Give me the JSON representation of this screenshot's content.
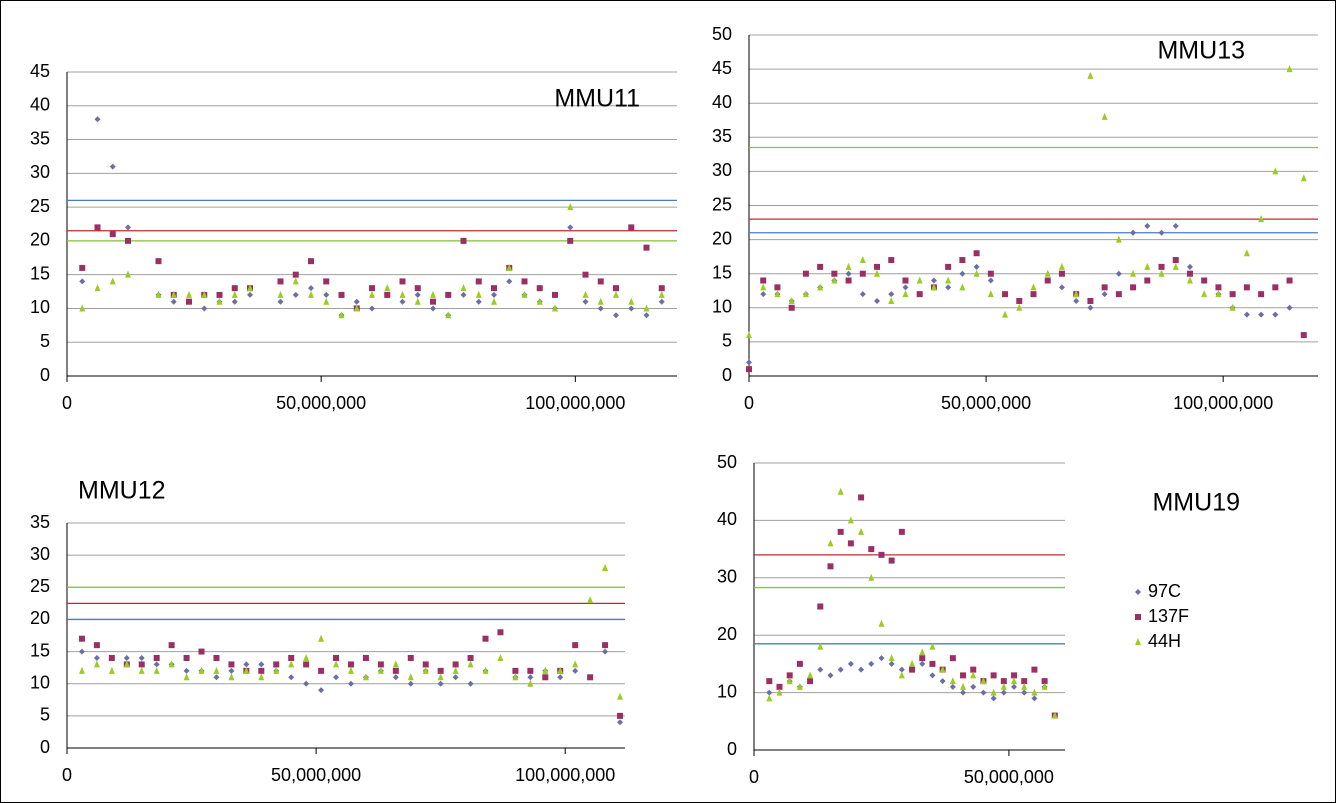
{
  "chart_data": [
    {
      "type": "scatter",
      "title": "MMU11",
      "x": [
        3000000,
        6000000,
        9000000,
        12000000,
        15000000,
        18000000,
        21000000,
        24000000,
        27000000,
        30000000,
        33000000,
        36000000,
        39000000,
        42000000,
        45000000,
        48000000,
        51000000,
        54000000,
        57000000,
        60000000,
        63000000,
        66000000,
        69000000,
        72000000,
        75000000,
        78000000,
        81000000,
        84000000,
        87000000,
        90000000,
        93000000,
        96000000,
        99000000,
        102000000,
        105000000,
        108000000,
        111000000,
        114000000,
        117000000
      ],
      "series": [
        {
          "color": "#6b6fa6",
          "marker": "diamond",
          "threshold": 26,
          "threshold_color": "#4a7cc7",
          "values": [
            14,
            38,
            31,
            22,
            null,
            12,
            11,
            11,
            10,
            11,
            11,
            12,
            null,
            11,
            12,
            13,
            12,
            9,
            11,
            10,
            12,
            11,
            12,
            10,
            9,
            12,
            11,
            12,
            14,
            12,
            11,
            10,
            22,
            11,
            10,
            9,
            10,
            9,
            11
          ]
        },
        {
          "color": "#9b2f64",
          "marker": "square",
          "threshold": 21.5,
          "threshold_color": "#c0282e",
          "values": [
            16,
            22,
            21,
            20,
            null,
            17,
            12,
            11,
            12,
            12,
            13,
            13,
            null,
            14,
            15,
            17,
            14,
            12,
            10,
            13,
            12,
            14,
            13,
            11,
            12,
            20,
            14,
            13,
            16,
            14,
            13,
            12,
            20,
            15,
            14,
            13,
            22,
            19,
            13
          ]
        },
        {
          "color": "#9acd1f",
          "marker": "triangle",
          "threshold": 20,
          "threshold_color": "#8cc33a",
          "values": [
            10,
            13,
            14,
            15,
            null,
            12,
            12,
            12,
            12,
            11,
            12,
            13,
            null,
            12,
            14,
            12,
            11,
            9,
            10,
            12,
            13,
            12,
            11,
            12,
            9,
            13,
            12,
            11,
            16,
            12,
            11,
            10,
            25,
            12,
            11,
            12,
            11,
            10,
            12
          ]
        }
      ],
      "xlim": [
        0,
        120000000
      ],
      "xticks": [
        0,
        {
          "value": 50000000,
          "label": "50,000,000"
        },
        {
          "value": 100000000,
          "label": "100,000,000"
        }
      ],
      "ylim": [
        0,
        45
      ],
      "yticks": [
        0,
        5,
        10,
        15,
        20,
        25,
        30,
        35,
        40,
        45
      ],
      "grid": true
    },
    {
      "type": "scatter",
      "title": "MMU13",
      "x": [
        0,
        3000000,
        6000000,
        9000000,
        12000000,
        15000000,
        18000000,
        21000000,
        24000000,
        27000000,
        30000000,
        33000000,
        36000000,
        39000000,
        42000000,
        45000000,
        48000000,
        51000000,
        54000000,
        57000000,
        60000000,
        63000000,
        66000000,
        69000000,
        72000000,
        75000000,
        78000000,
        81000000,
        84000000,
        87000000,
        90000000,
        93000000,
        96000000,
        99000000,
        102000000,
        105000000,
        108000000,
        111000000,
        114000000,
        117000000
      ],
      "series": [
        {
          "color": "#6b6fa6",
          "marker": "diamond",
          "threshold": 21,
          "threshold_color": "#4a7cc7",
          "values": [
            2,
            12,
            12,
            11,
            12,
            13,
            14,
            15,
            12,
            11,
            12,
            13,
            12,
            14,
            13,
            15,
            16,
            14,
            12,
            11,
            12,
            14,
            13,
            11,
            10,
            12,
            15,
            21,
            22,
            21,
            22,
            16,
            14,
            12,
            10,
            9,
            9,
            9,
            10,
            6
          ]
        },
        {
          "color": "#9b2f64",
          "marker": "square",
          "threshold": 23,
          "threshold_color": "#c0282e",
          "values": [
            1,
            14,
            13,
            10,
            15,
            16,
            15,
            14,
            15,
            16,
            17,
            14,
            12,
            13,
            16,
            17,
            18,
            15,
            12,
            11,
            12,
            14,
            15,
            12,
            11,
            13,
            12,
            13,
            14,
            16,
            17,
            15,
            14,
            13,
            12,
            13,
            12,
            13,
            14,
            6
          ]
        },
        {
          "color": "#9acd1f",
          "marker": "triangle",
          "threshold": 33.5,
          "threshold_color": "#8cc33a",
          "values": [
            6,
            13,
            12,
            11,
            12,
            13,
            14,
            16,
            17,
            15,
            11,
            12,
            14,
            13,
            14,
            13,
            15,
            12,
            9,
            10,
            13,
            15,
            16,
            12,
            44,
            38,
            20,
            15,
            16,
            15,
            16,
            14,
            12,
            12,
            10,
            18,
            23,
            30,
            45,
            29
          ]
        }
      ],
      "xlim": [
        0,
        120000000
      ],
      "xticks": [
        0,
        {
          "value": 50000000,
          "label": "50,000,000"
        },
        {
          "value": 100000000,
          "label": "100,000,000"
        }
      ],
      "ylim": [
        0,
        50
      ],
      "yticks": [
        0,
        5,
        10,
        15,
        20,
        25,
        30,
        35,
        40,
        45,
        50
      ],
      "grid": true
    },
    {
      "type": "scatter",
      "title": "MMU12",
      "x": [
        3000000,
        6000000,
        9000000,
        12000000,
        15000000,
        18000000,
        21000000,
        24000000,
        27000000,
        30000000,
        33000000,
        36000000,
        39000000,
        42000000,
        45000000,
        48000000,
        51000000,
        54000000,
        57000000,
        60000000,
        63000000,
        66000000,
        69000000,
        72000000,
        75000000,
        78000000,
        81000000,
        84000000,
        87000000,
        90000000,
        93000000,
        96000000,
        99000000,
        102000000,
        105000000,
        108000000,
        111000000
      ],
      "series": [
        {
          "color": "#6b6fa6",
          "marker": "diamond",
          "threshold": 20,
          "threshold_color": "#4a7cc7",
          "values": [
            15,
            14,
            14,
            14,
            14,
            13,
            13,
            12,
            12,
            11,
            12,
            13,
            13,
            12,
            11,
            10,
            9,
            11,
            10,
            11,
            12,
            11,
            10,
            12,
            10,
            11,
            10,
            12,
            18,
            11,
            11,
            12,
            11,
            12,
            11,
            15,
            4
          ]
        },
        {
          "color": "#9b2f64",
          "marker": "square",
          "threshold": 22.5,
          "threshold_color": "#c0282e",
          "values": [
            17,
            16,
            14,
            13,
            13,
            14,
            16,
            14,
            15,
            14,
            13,
            12,
            12,
            13,
            14,
            13,
            12,
            14,
            13,
            14,
            13,
            12,
            14,
            13,
            12,
            13,
            14,
            17,
            18,
            12,
            12,
            11,
            12,
            16,
            11,
            16,
            5
          ]
        },
        {
          "color": "#9acd1f",
          "marker": "triangle",
          "threshold": 25,
          "threshold_color": "#8cc33a",
          "values": [
            12,
            13,
            12,
            13,
            12,
            12,
            13,
            11,
            12,
            12,
            11,
            12,
            11,
            12,
            13,
            14,
            17,
            13,
            12,
            11,
            12,
            13,
            11,
            12,
            11,
            12,
            13,
            12,
            14,
            11,
            10,
            12,
            12,
            13,
            23,
            28,
            8
          ]
        }
      ],
      "xlim": [
        0,
        112000000
      ],
      "xticks": [
        0,
        {
          "value": 50000000,
          "label": "50,000,000"
        },
        {
          "value": 100000000,
          "label": "100,000,000"
        }
      ],
      "ylim": [
        0,
        35
      ],
      "yticks": [
        0,
        5,
        10,
        15,
        20,
        25,
        30,
        35
      ],
      "grid": true
    },
    {
      "type": "scatter",
      "title": "MMU19",
      "x": [
        3000000,
        5000000,
        7000000,
        9000000,
        11000000,
        13000000,
        15000000,
        17000000,
        19000000,
        21000000,
        23000000,
        25000000,
        27000000,
        29000000,
        31000000,
        33000000,
        35000000,
        37000000,
        39000000,
        41000000,
        43000000,
        45000000,
        47000000,
        49000000,
        51000000,
        53000000,
        55000000,
        57000000,
        59000000
      ],
      "series": [
        {
          "name": "97C",
          "color": "#6b6fa6",
          "marker": "diamond",
          "threshold": 18.5,
          "threshold_color": "#4a7cc7",
          "values": [
            10,
            11,
            12,
            11,
            12,
            14,
            13,
            14,
            15,
            14,
            15,
            16,
            15,
            14,
            14,
            15,
            13,
            12,
            11,
            10,
            11,
            10,
            9,
            10,
            11,
            10,
            9,
            11,
            6
          ]
        },
        {
          "name": "137F",
          "color": "#9b2f64",
          "marker": "square",
          "threshold": 34,
          "threshold_color": "#c0282e",
          "values": [
            12,
            11,
            13,
            15,
            12,
            25,
            32,
            38,
            36,
            44,
            35,
            34,
            33,
            38,
            14,
            16,
            15,
            14,
            16,
            13,
            14,
            12,
            13,
            12,
            13,
            12,
            14,
            12,
            6
          ]
        },
        {
          "name": "44H",
          "color": "#9acd1f",
          "marker": "triangle",
          "threshold": 28.3,
          "threshold_color": "#8cc33a",
          "values": [
            9,
            10,
            12,
            11,
            13,
            18,
            36,
            45,
            40,
            38,
            30,
            22,
            16,
            13,
            15,
            17,
            18,
            14,
            12,
            11,
            13,
            12,
            10,
            11,
            12,
            11,
            10,
            11,
            6
          ]
        }
      ],
      "xlim": [
        0,
        61000000
      ],
      "xticks": [
        0,
        {
          "value": 50000000,
          "label": "50,000,000"
        }
      ],
      "ylim": [
        0,
        50
      ],
      "yticks": [
        0,
        10,
        20,
        30,
        40,
        50
      ],
      "grid": true,
      "legend": "right"
    }
  ]
}
